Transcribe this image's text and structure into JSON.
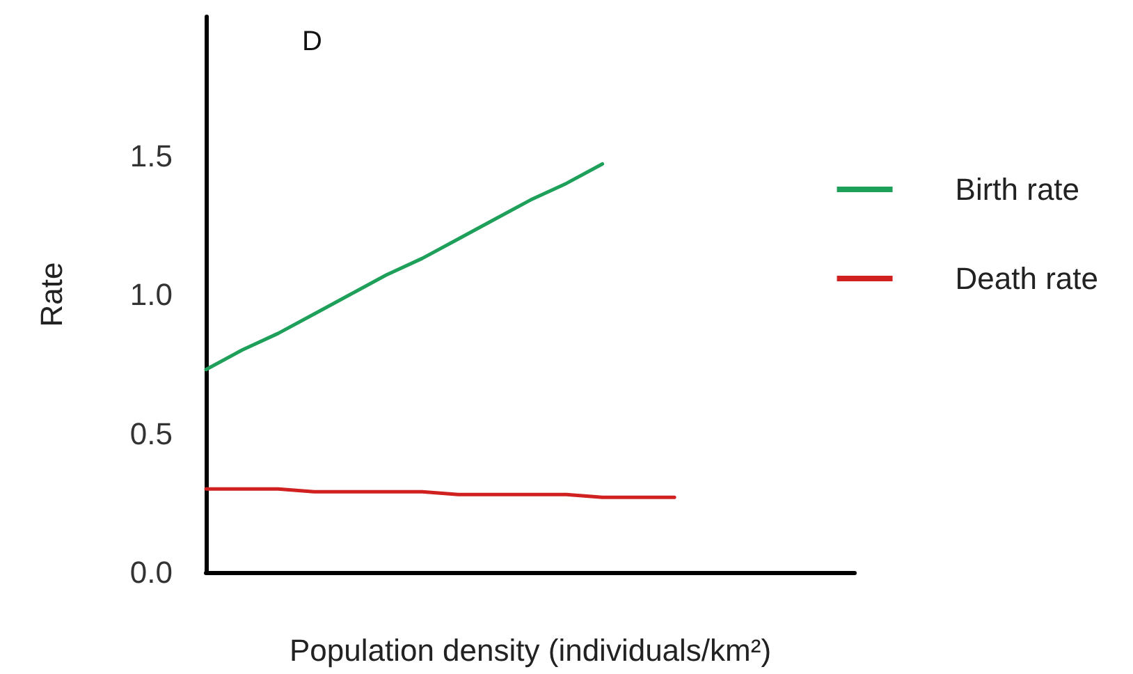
{
  "chart_data": {
    "type": "line",
    "title": "D",
    "xlabel": "Population density (individuals/km²)",
    "ylabel": "Rate",
    "categories": [
      null,
      null,
      null,
      null,
      null,
      null,
      null,
      null,
      null,
      null,
      null,
      null,
      null,
      null,
      null,
      null,
      null,
      null,
      null
    ],
    "ylim": [
      0,
      2
    ],
    "yticks": [
      {
        "value": 0,
        "label": "0.0"
      },
      {
        "value": 0.5,
        "label": "0.5"
      },
      {
        "value": 1,
        "label": "1.0"
      },
      {
        "value": 1.5,
        "label": "1.5"
      }
    ],
    "grid": false,
    "legend": "right",
    "marker": "none",
    "line_style": "solid",
    "series": [
      {
        "name": "Birth rate",
        "color": "#1fa05a",
        "values": [
          0.73,
          0.8,
          0.86,
          0.93,
          1.0,
          1.07,
          1.13,
          1.2,
          1.27,
          1.34,
          1.4,
          1.47,
          null,
          null,
          null,
          null,
          null,
          null,
          null
        ]
      },
      {
        "name": "Death rate",
        "color": "#d02020",
        "values": [
          0.3,
          0.3,
          0.3,
          0.29,
          0.29,
          0.29,
          0.29,
          0.28,
          0.28,
          0.28,
          0.28,
          0.27,
          0.27,
          0.27,
          null,
          null,
          null,
          null,
          null
        ]
      }
    ]
  }
}
